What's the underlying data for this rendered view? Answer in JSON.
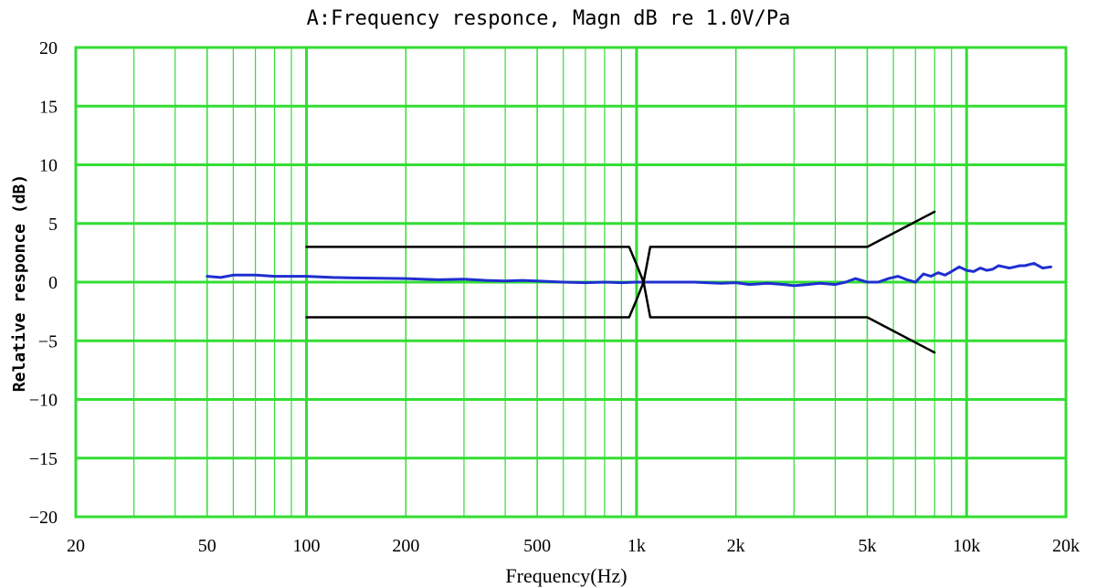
{
  "chart_data": {
    "type": "line",
    "title": "A:Frequency responce, Magn dB re 1.0V/Pa",
    "xlabel": "Frequency(Hz)",
    "ylabel": "Relative responce (dB)",
    "x_scale": "log",
    "xlim": [
      20,
      20000
    ],
    "ylim": [
      -20,
      20
    ],
    "x_ticks": [
      {
        "value": 20,
        "label": "20"
      },
      {
        "value": 50,
        "label": "50"
      },
      {
        "value": 100,
        "label": "100"
      },
      {
        "value": 200,
        "label": "200"
      },
      {
        "value": 500,
        "label": "500"
      },
      {
        "value": 1000,
        "label": "1k"
      },
      {
        "value": 2000,
        "label": "2k"
      },
      {
        "value": 5000,
        "label": "5k"
      },
      {
        "value": 10000,
        "label": "10k"
      },
      {
        "value": 20000,
        "label": "20k"
      }
    ],
    "y_ticks": [
      20,
      15,
      10,
      5,
      0,
      -5,
      -10,
      -15,
      -20
    ],
    "grid": true,
    "colors": {
      "grid": "#33dd33",
      "response": "#1f2fd0",
      "limits": "#000000"
    },
    "series": [
      {
        "kind": "response",
        "x": [
          50,
          55,
          60,
          70,
          80,
          100,
          120,
          150,
          200,
          250,
          300,
          350,
          400,
          450,
          500,
          600,
          700,
          800,
          900,
          1000,
          1200,
          1500,
          1800,
          2000,
          2200,
          2500,
          2800,
          3000,
          3300,
          3600,
          4000,
          4300,
          4600,
          5000,
          5400,
          5800,
          6200,
          6600,
          7000,
          7400,
          7800,
          8200,
          8600,
          9000,
          9500,
          10000,
          10500,
          11000,
          11500,
          12000,
          12500,
          13000,
          13500,
          14000,
          14500,
          15000,
          16000,
          17000,
          18000
        ],
        "y": [
          0.5,
          0.4,
          0.6,
          0.6,
          0.5,
          0.5,
          0.4,
          0.35,
          0.3,
          0.2,
          0.25,
          0.15,
          0.1,
          0.15,
          0.1,
          0.0,
          -0.05,
          0.0,
          -0.05,
          0.0,
          0.0,
          0.0,
          -0.1,
          -0.05,
          -0.2,
          -0.1,
          -0.2,
          -0.3,
          -0.2,
          -0.1,
          -0.2,
          0.0,
          0.3,
          0.0,
          0.0,
          0.3,
          0.5,
          0.2,
          0.0,
          0.7,
          0.5,
          0.8,
          0.6,
          0.9,
          1.3,
          1.0,
          0.9,
          1.2,
          1.0,
          1.1,
          1.4,
          1.3,
          1.2,
          1.3,
          1.4,
          1.4,
          1.6,
          1.2,
          1.3
        ]
      },
      {
        "kind": "upper-limit",
        "x": [
          100,
          950,
          1000,
          1050,
          1100,
          5000,
          8000
        ],
        "y": [
          3,
          3,
          1.5,
          0,
          3,
          3,
          6
        ]
      },
      {
        "kind": "lower-limit",
        "x": [
          100,
          950,
          1000,
          1050,
          1100,
          5000,
          8000
        ],
        "y": [
          -3,
          -3,
          -1.5,
          0,
          -3,
          -3,
          -6
        ]
      }
    ]
  }
}
